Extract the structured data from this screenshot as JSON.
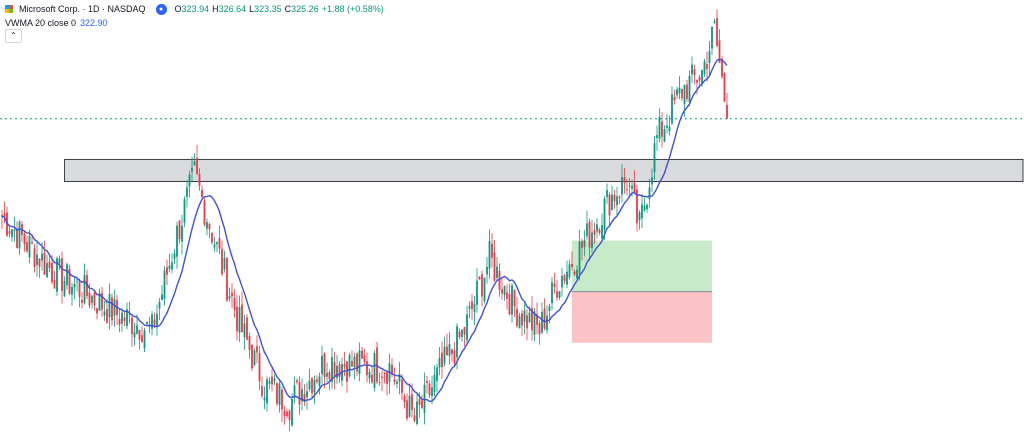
{
  "legend": {
    "symbol_title": "Microsoft Corp. · 1D · NASDAQ",
    "ohlc": [
      {
        "k": "O",
        "v": "323.94"
      },
      {
        "k": "H",
        "v": "326.64"
      },
      {
        "k": "L",
        "v": "323.35"
      },
      {
        "k": "C",
        "v": "325.26"
      }
    ],
    "change": "+1.88 (+0.58%)",
    "indicator_label": "VWMA 20 close 0",
    "indicator_value": "322.90",
    "symbol_icon": "microsoft-logo-icon",
    "live_icon": "realtime-data-icon",
    "collapse_icon": "chevron-up-icon"
  },
  "colors": {
    "up": "#089981",
    "down": "#f23645",
    "vwma": "#3f51d6",
    "zone_fill": "#d9dadc",
    "zone_border": "#131722",
    "profit_fill": "#c7ebc9",
    "loss_fill": "#fcc3c6",
    "price_line": "#089981"
  },
  "chart_data": {
    "type": "candlestick",
    "symbol": "MSFT",
    "interval": "1D",
    "price_range": [
      272,
      345
    ],
    "series": [
      {
        "name": "VWMA 20 close 0",
        "type": "line"
      }
    ],
    "last_close": 325.26,
    "annotations": {
      "resistance_zone": {
        "top": 318.5,
        "bottom": 314.8
      },
      "position": {
        "entry": 296.5,
        "target": 305.0,
        "stop": 288.0
      }
    },
    "key_points": [
      {
        "x": 0,
        "price": 309
      },
      {
        "x": 20,
        "price": 300
      },
      {
        "x": 45,
        "price": 293
      },
      {
        "x": 60,
        "price": 290
      },
      {
        "x": 70,
        "price": 306
      },
      {
        "x": 77,
        "price": 316
      },
      {
        "x": 85,
        "price": 305
      },
      {
        "x": 95,
        "price": 291
      },
      {
        "x": 105,
        "price": 281
      },
      {
        "x": 115,
        "price": 278
      },
      {
        "x": 130,
        "price": 285
      },
      {
        "x": 145,
        "price": 284
      },
      {
        "x": 155,
        "price": 284
      },
      {
        "x": 165,
        "price": 275
      },
      {
        "x": 175,
        "price": 283
      },
      {
        "x": 185,
        "price": 290
      },
      {
        "x": 195,
        "price": 302
      },
      {
        "x": 205,
        "price": 294
      },
      {
        "x": 215,
        "price": 290
      },
      {
        "x": 222,
        "price": 298
      },
      {
        "x": 232,
        "price": 304
      },
      {
        "x": 243,
        "price": 312
      },
      {
        "x": 250,
        "price": 315
      },
      {
        "x": 255,
        "price": 307
      },
      {
        "x": 262,
        "price": 322
      },
      {
        "x": 272,
        "price": 330
      },
      {
        "x": 280,
        "price": 333
      },
      {
        "x": 285,
        "price": 340
      },
      {
        "x": 290,
        "price": 326
      }
    ]
  }
}
